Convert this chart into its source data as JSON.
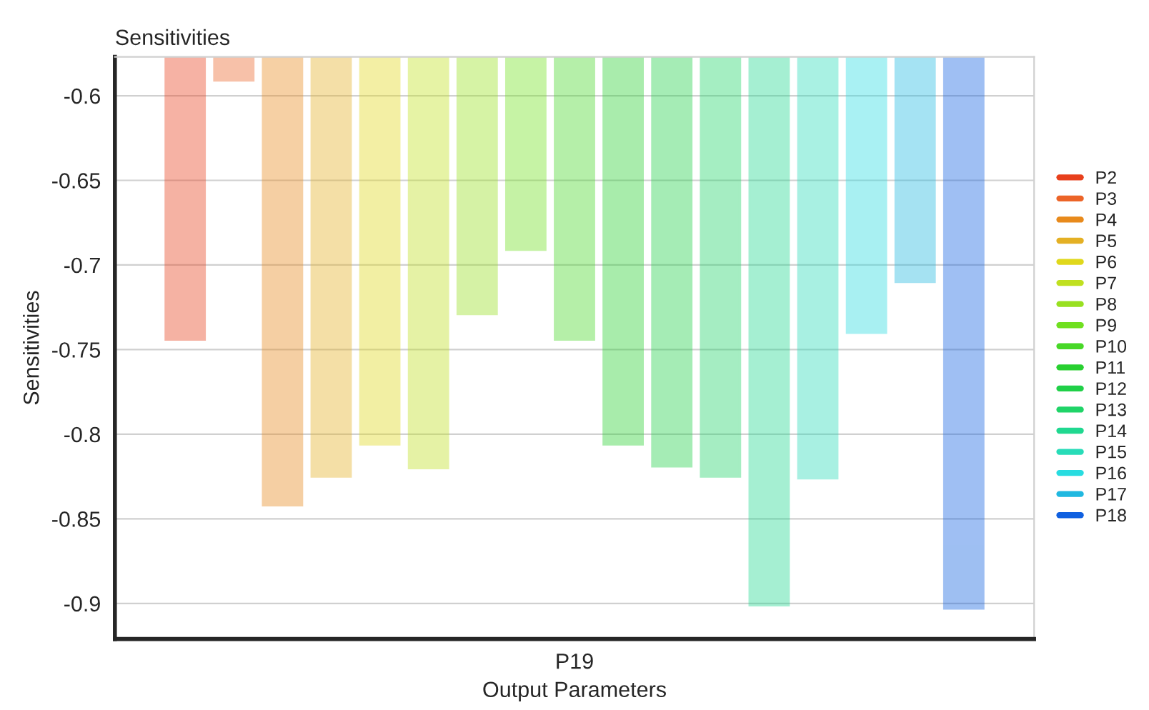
{
  "chart_data": {
    "type": "bar",
    "title": "Sensitivities",
    "xlabel": "Output Parameters",
    "ylabel": "Sensitivities",
    "categories": [
      "P19"
    ],
    "series": [
      {
        "name": "P2",
        "color": "#e8401c",
        "values": [
          -0.744
        ]
      },
      {
        "name": "P3",
        "color": "#ec6428",
        "values": [
          -0.591
        ]
      },
      {
        "name": "P4",
        "color": "#e88a1c",
        "values": [
          -0.842
        ]
      },
      {
        "name": "P5",
        "color": "#e4b024",
        "values": [
          -0.825
        ]
      },
      {
        "name": "P6",
        "color": "#e0d81c",
        "values": [
          -0.806
        ]
      },
      {
        "name": "P7",
        "color": "#c0e020",
        "values": [
          -0.82
        ]
      },
      {
        "name": "P8",
        "color": "#98e020",
        "values": [
          -0.729
        ]
      },
      {
        "name": "P9",
        "color": "#70e020",
        "values": [
          -0.691
        ]
      },
      {
        "name": "P10",
        "color": "#48d828",
        "values": [
          -0.744
        ]
      },
      {
        "name": "P11",
        "color": "#28d030",
        "values": [
          -0.806
        ]
      },
      {
        "name": "P12",
        "color": "#20d048",
        "values": [
          -0.819
        ]
      },
      {
        "name": "P13",
        "color": "#20d468",
        "values": [
          -0.825
        ]
      },
      {
        "name": "P14",
        "color": "#20d890",
        "values": [
          -0.901
        ]
      },
      {
        "name": "P15",
        "color": "#28dcb8",
        "values": [
          -0.826
        ]
      },
      {
        "name": "P16",
        "color": "#28dce0",
        "values": [
          -0.74
        ]
      },
      {
        "name": "P17",
        "color": "#20b8e0",
        "values": [
          -0.71
        ]
      },
      {
        "name": "P18",
        "color": "#1060e0",
        "values": [
          -0.903
        ]
      }
    ],
    "ylim": [
      -0.921,
      -0.577
    ],
    "yticks": [
      -0.9,
      -0.85,
      -0.8,
      -0.75,
      -0.7,
      -0.65,
      -0.6
    ],
    "grid": "y",
    "legend": "right"
  }
}
